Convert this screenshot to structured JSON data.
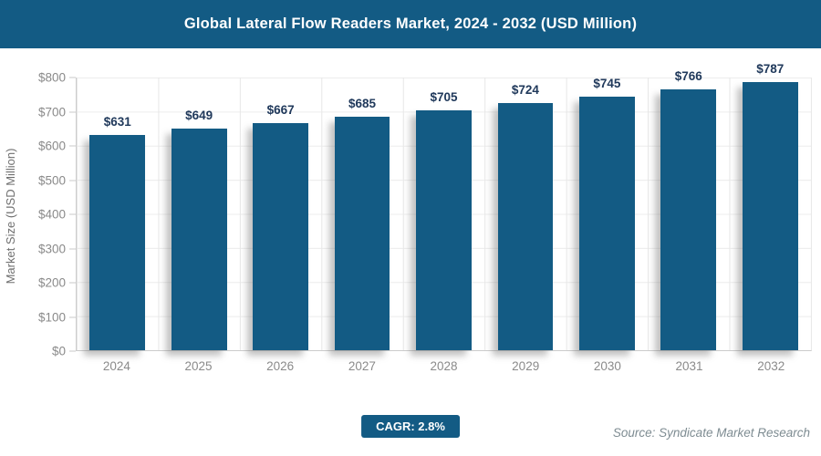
{
  "header": {
    "title": "Global Lateral Flow Readers Market, 2024 - 2032 (USD Million)",
    "background_color": "#135B84",
    "text_color": "#FFFFFF"
  },
  "chart_data": {
    "type": "bar",
    "title": "Global Lateral Flow Readers Market, 2024 - 2032 (USD Million)",
    "categories": [
      "2024",
      "2025",
      "2026",
      "2027",
      "2028",
      "2029",
      "2030",
      "2031",
      "2032"
    ],
    "values": [
      631,
      649,
      667,
      685,
      705,
      724,
      745,
      766,
      787
    ],
    "data_labels": [
      "$631",
      "$649",
      "$667",
      "$685",
      "$705",
      "$724",
      "$745",
      "$766",
      "$787"
    ],
    "xlabel": "",
    "ylabel": "Market Size (USD Million)",
    "ylim": [
      0,
      800
    ],
    "ytick_step": 100,
    "yticks": [
      "$0",
      "$100",
      "$200",
      "$300",
      "$400",
      "$500",
      "$600",
      "$700",
      "$800"
    ],
    "grid": true,
    "legend": "none",
    "bar_color": "#135B84",
    "data_label_color": "#20395B"
  },
  "footer": {
    "cagr_label": "CAGR: 2.8%",
    "cagr_background": "#135B84",
    "source": "Source: Syndicate Market Research"
  }
}
